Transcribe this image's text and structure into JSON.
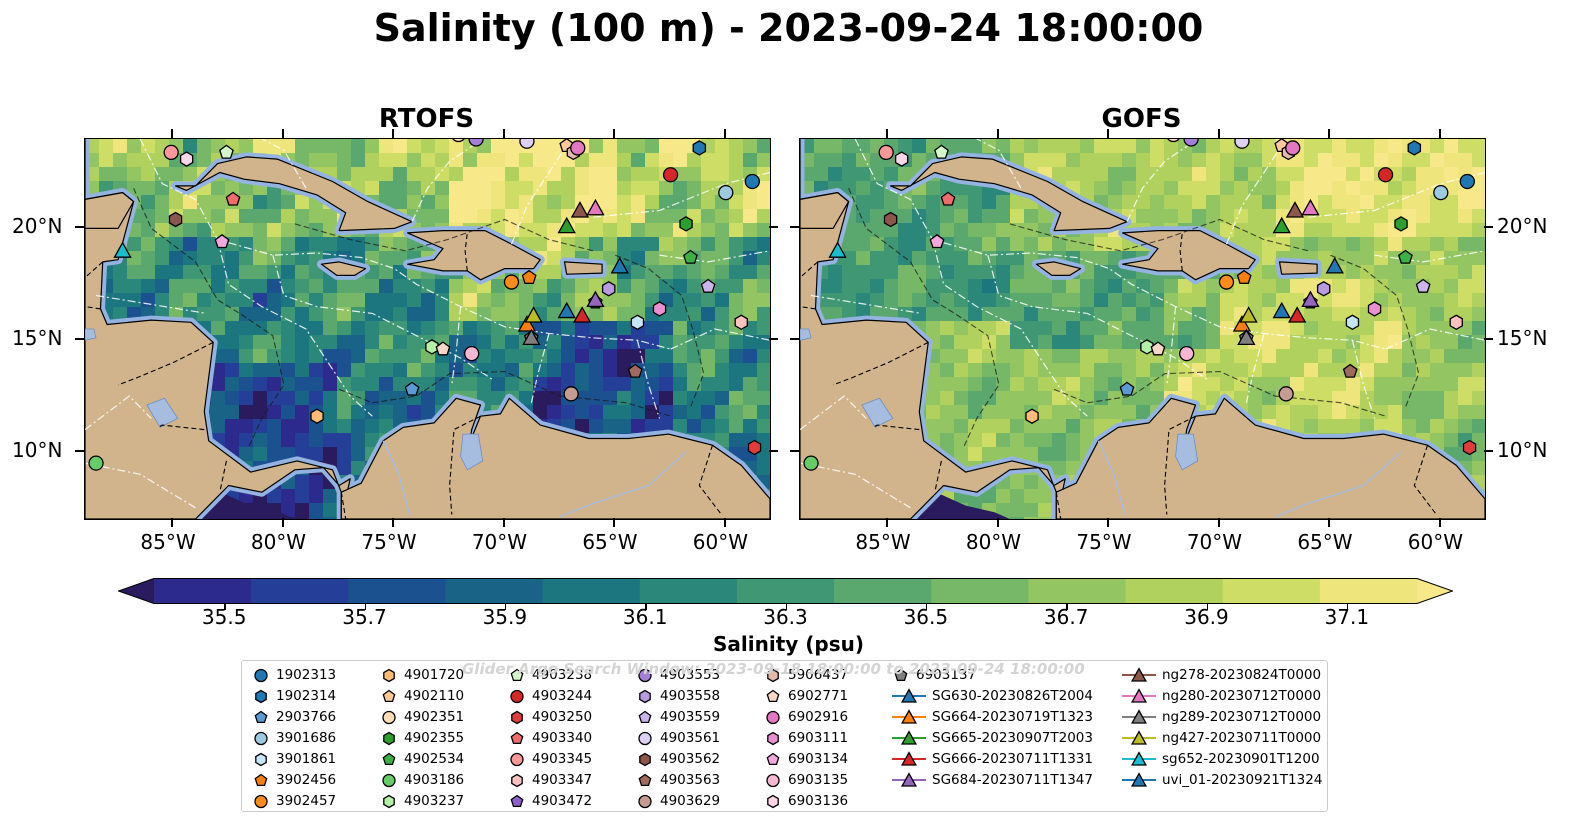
{
  "title": "Salinity (100 m) - 2023-09-24 18:00:00",
  "panels": [
    {
      "title": "RTOFS"
    },
    {
      "title": "GOFS"
    }
  ],
  "axes": {
    "lon_labels": [
      "85°W",
      "80°W",
      "75°W",
      "70°W",
      "65°W",
      "60°W"
    ],
    "lat_labels": [
      "20°N",
      "15°N",
      "10°N"
    ],
    "lon_values": [
      -85,
      -80,
      -75,
      -70,
      -65,
      -60
    ],
    "lat_values": [
      20,
      15,
      10
    ],
    "lon_range": [
      -89,
      -58
    ],
    "lat_range": [
      7,
      24
    ]
  },
  "colorbar": {
    "label": "Salinity (psu)",
    "tick_labels": [
      "35.5",
      "35.7",
      "35.9",
      "36.1",
      "36.3",
      "36.5",
      "36.7",
      "36.9",
      "37.1"
    ],
    "tick_values": [
      35.5,
      35.7,
      35.9,
      36.1,
      36.3,
      36.5,
      36.7,
      36.9,
      37.1
    ],
    "range": [
      35.4,
      37.2
    ],
    "colors": [
      "#2a1b5e",
      "#2c2a8c",
      "#253e98",
      "#1c5190",
      "#196486",
      "#1c767f",
      "#2a8779",
      "#3f9773",
      "#5aa86e",
      "#76b868",
      "#93c663",
      "#b0d15e",
      "#cedd65",
      "#eee67c",
      "#f7e889"
    ]
  },
  "watermark": "Glider Argo Search Window: 2023-09-18 18:00:00 to 2023-09-24 18:00:00",
  "legend": [
    {
      "label": "1902313",
      "marker": "circle",
      "color": "#1f77b4"
    },
    {
      "label": "1902314",
      "marker": "hexagon",
      "color": "#1f77b4"
    },
    {
      "label": "2903766",
      "marker": "pentagon",
      "color": "#5a9bd5"
    },
    {
      "label": "3901686",
      "marker": "circle",
      "color": "#9ecae1"
    },
    {
      "label": "3901861",
      "marker": "hexagon",
      "color": "#c6e5f7"
    },
    {
      "label": "3902456",
      "marker": "pentagon",
      "color": "#ff7f0e"
    },
    {
      "label": "3902457",
      "marker": "circle",
      "color": "#ff8c1a"
    },
    {
      "label": "4901720",
      "marker": "hexagon",
      "color": "#ffbb78"
    },
    {
      "label": "4902110",
      "marker": "pentagon",
      "color": "#ffc99a"
    },
    {
      "label": "4902351",
      "marker": "circle",
      "color": "#ffddb8"
    },
    {
      "label": "4902355",
      "marker": "hexagon",
      "color": "#2ca02c"
    },
    {
      "label": "4902534",
      "marker": "pentagon",
      "color": "#3cb043"
    },
    {
      "label": "4903186",
      "marker": "circle",
      "color": "#66cc66"
    },
    {
      "label": "4903237",
      "marker": "hexagon",
      "color": "#b5f0a8"
    },
    {
      "label": "4903238",
      "marker": "pentagon",
      "color": "#d5f7cc"
    },
    {
      "label": "4903244",
      "marker": "circle",
      "color": "#d62728"
    },
    {
      "label": "4903250",
      "marker": "hexagon",
      "color": "#e03c3c"
    },
    {
      "label": "4903340",
      "marker": "pentagon",
      "color": "#f06b6b"
    },
    {
      "label": "4903345",
      "marker": "circle",
      "color": "#ff9896"
    },
    {
      "label": "4903347",
      "marker": "hexagon",
      "color": "#ffc2c0"
    },
    {
      "label": "4903472",
      "marker": "pentagon",
      "color": "#8c5fc9"
    },
    {
      "label": "4903553",
      "marker": "circle",
      "color": "#a57fd6"
    },
    {
      "label": "4903558",
      "marker": "hexagon",
      "color": "#b99be0"
    },
    {
      "label": "4903559",
      "marker": "pentagon",
      "color": "#cbb5ea"
    },
    {
      "label": "4903561",
      "marker": "circle",
      "color": "#ddd0f2"
    },
    {
      "label": "4903562",
      "marker": "hexagon",
      "color": "#8c564b"
    },
    {
      "label": "4903563",
      "marker": "pentagon",
      "color": "#a06b5e"
    },
    {
      "label": "4903629",
      "marker": "circle",
      "color": "#c49c94"
    },
    {
      "label": "5906437",
      "marker": "hexagon",
      "color": "#e2b9aa"
    },
    {
      "label": "6902771",
      "marker": "pentagon",
      "color": "#f7d6c8"
    },
    {
      "label": "6902916",
      "marker": "circle",
      "color": "#e377c2"
    },
    {
      "label": "6903111",
      "marker": "hexagon",
      "color": "#ea8fd0"
    },
    {
      "label": "6903134",
      "marker": "pentagon",
      "color": "#f2a8dc"
    },
    {
      "label": "6903135",
      "marker": "circle",
      "color": "#f7b6d2"
    },
    {
      "label": "6903136",
      "marker": "hexagon",
      "color": "#fbd5e8"
    },
    {
      "label": "6903137",
      "marker": "pentagon",
      "color": "#7f7f7f"
    },
    {
      "label": "SG630-20230826T2004",
      "marker": "triangle",
      "color": "#1f77b4"
    },
    {
      "label": "SG664-20230719T1323",
      "marker": "triangle",
      "color": "#ff7f0e"
    },
    {
      "label": "SG665-20230907T2003",
      "marker": "triangle",
      "color": "#2ca02c"
    },
    {
      "label": "SG666-20230711T1331",
      "marker": "triangle",
      "color": "#d62728"
    },
    {
      "label": "SG684-20230711T1347",
      "marker": "triangle",
      "color": "#9467bd"
    },
    {
      "label": "ng278-20230824T0000",
      "marker": "triangle",
      "color": "#8c564b"
    },
    {
      "label": "ng280-20230712T0000",
      "marker": "triangle",
      "color": "#e377c2"
    },
    {
      "label": "ng289-20230712T0000",
      "marker": "triangle",
      "color": "#7f7f7f"
    },
    {
      "label": "ng427-20230711T0000",
      "marker": "triangle",
      "color": "#bcbd22"
    },
    {
      "label": "sg652-20230901T1200",
      "marker": "triangle",
      "color": "#17becf"
    },
    {
      "label": "uvi_01-20230921T1324",
      "marker": "triangle",
      "color": "#1f77b4"
    }
  ],
  "observations": [
    {
      "label": "1902313",
      "lon": -58.8,
      "lat": 22.1
    },
    {
      "label": "1902314",
      "lon": -61.2,
      "lat": 23.6
    },
    {
      "label": "2903766",
      "lon": -74.2,
      "lat": 12.8
    },
    {
      "label": "3901686",
      "lon": -60.0,
      "lat": 21.6
    },
    {
      "label": "3901861",
      "lon": -64.0,
      "lat": 15.8
    },
    {
      "label": "3902456",
      "lon": -68.9,
      "lat": 17.8
    },
    {
      "label": "3902457",
      "lon": -69.7,
      "lat": 17.6
    },
    {
      "label": "4901720",
      "lon": -78.5,
      "lat": 11.6
    },
    {
      "label": "4902110",
      "lon": -67.2,
      "lat": 23.7
    },
    {
      "label": "4902351",
      "lon": -72.1,
      "lat": 24.2
    },
    {
      "label": "4902355",
      "lon": -61.8,
      "lat": 20.2
    },
    {
      "label": "4902534",
      "lon": -61.6,
      "lat": 18.7
    },
    {
      "label": "4903186",
      "lon": -88.5,
      "lat": 9.5
    },
    {
      "label": "4903237",
      "lon": -73.3,
      "lat": 14.7
    },
    {
      "label": "4903238",
      "lon": -82.6,
      "lat": 23.4
    },
    {
      "label": "4903244",
      "lon": -62.5,
      "lat": 22.4
    },
    {
      "label": "4903250",
      "lon": -58.7,
      "lat": 10.2
    },
    {
      "label": "4903340",
      "lon": -82.3,
      "lat": 21.3
    },
    {
      "label": "4903345",
      "lon": -85.1,
      "lat": 23.4
    },
    {
      "label": "4903347",
      "lon": -59.3,
      "lat": 15.8
    },
    {
      "label": "4903472",
      "lon": -65.9,
      "lat": 16.7
    },
    {
      "label": "4903553",
      "lon": -71.3,
      "lat": 24.0
    },
    {
      "label": "4903558",
      "lon": -65.3,
      "lat": 17.3
    },
    {
      "label": "4903559",
      "lon": -60.8,
      "lat": 17.4
    },
    {
      "label": "4903561",
      "lon": -69.0,
      "lat": 23.9
    },
    {
      "label": "4903562",
      "lon": -84.9,
      "lat": 20.4
    },
    {
      "label": "4903563",
      "lon": -64.1,
      "lat": 13.6
    },
    {
      "label": "4903629",
      "lon": -67.0,
      "lat": 12.6
    },
    {
      "label": "5906437",
      "lon": -66.9,
      "lat": 23.4
    },
    {
      "label": "6902771",
      "lon": -72.8,
      "lat": 14.6
    },
    {
      "label": "6902916",
      "lon": -66.7,
      "lat": 23.6
    },
    {
      "label": "6903111",
      "lon": -63.0,
      "lat": 16.4
    },
    {
      "label": "6903134",
      "lon": -82.8,
      "lat": 19.4
    },
    {
      "label": "6903135",
      "lon": -71.5,
      "lat": 14.4
    },
    {
      "label": "6903136",
      "lon": -84.4,
      "lat": 23.1
    },
    {
      "label": "6903137",
      "lon": -68.8,
      "lat": 15.1
    },
    {
      "label": "SG630-20230826T2004",
      "lon": -67.2,
      "lat": 16.3
    },
    {
      "label": "SG664-20230719T1323",
      "lon": -69.0,
      "lat": 15.7
    },
    {
      "label": "SG665-20230907T2003",
      "lon": -67.2,
      "lat": 20.1
    },
    {
      "label": "SG666-20230711T1331",
      "lon": -66.5,
      "lat": 16.1
    },
    {
      "label": "SG684-20230711T1347",
      "lon": -65.9,
      "lat": 16.8
    },
    {
      "label": "ng278-20230824T0000",
      "lon": -66.6,
      "lat": 20.8
    },
    {
      "label": "ng280-20230712T0000",
      "lon": -65.9,
      "lat": 20.9
    },
    {
      "label": "ng289-20230712T0000",
      "lon": -68.8,
      "lat": 15.1
    },
    {
      "label": "ng427-20230711T0000",
      "lon": -68.7,
      "lat": 16.1
    },
    {
      "label": "sg652-20230901T1200",
      "lon": -87.3,
      "lat": 19.0
    },
    {
      "label": "uvi_01-20230921T1324",
      "lon": -64.8,
      "lat": 18.3
    }
  ]
}
